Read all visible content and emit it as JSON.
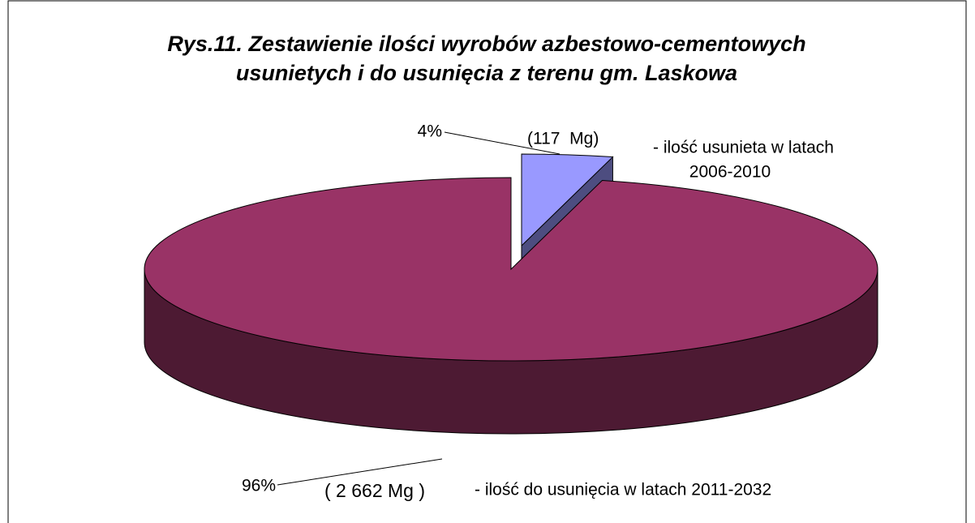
{
  "chart_data": {
    "type": "pie3d",
    "title": [
      "Rys.11. Zestawienie ilości wyrobów azbestowo-cementowych",
      "usunietych i do usunięcia z terenu gm. Laskowa"
    ],
    "values": [
      4,
      96
    ],
    "value_labels": [
      "4%",
      "96%"
    ],
    "colors": [
      "#9999ff",
      "#993366"
    ],
    "annotations": [
      [
        "(117  Mg)"
      ],
      [
        "- ilość usunieta w latach",
        "2006-2010"
      ],
      [
        "( 2 662 Mg )"
      ],
      [
        "- ilość do usunięcia w latach 2011-2032"
      ]
    ]
  }
}
